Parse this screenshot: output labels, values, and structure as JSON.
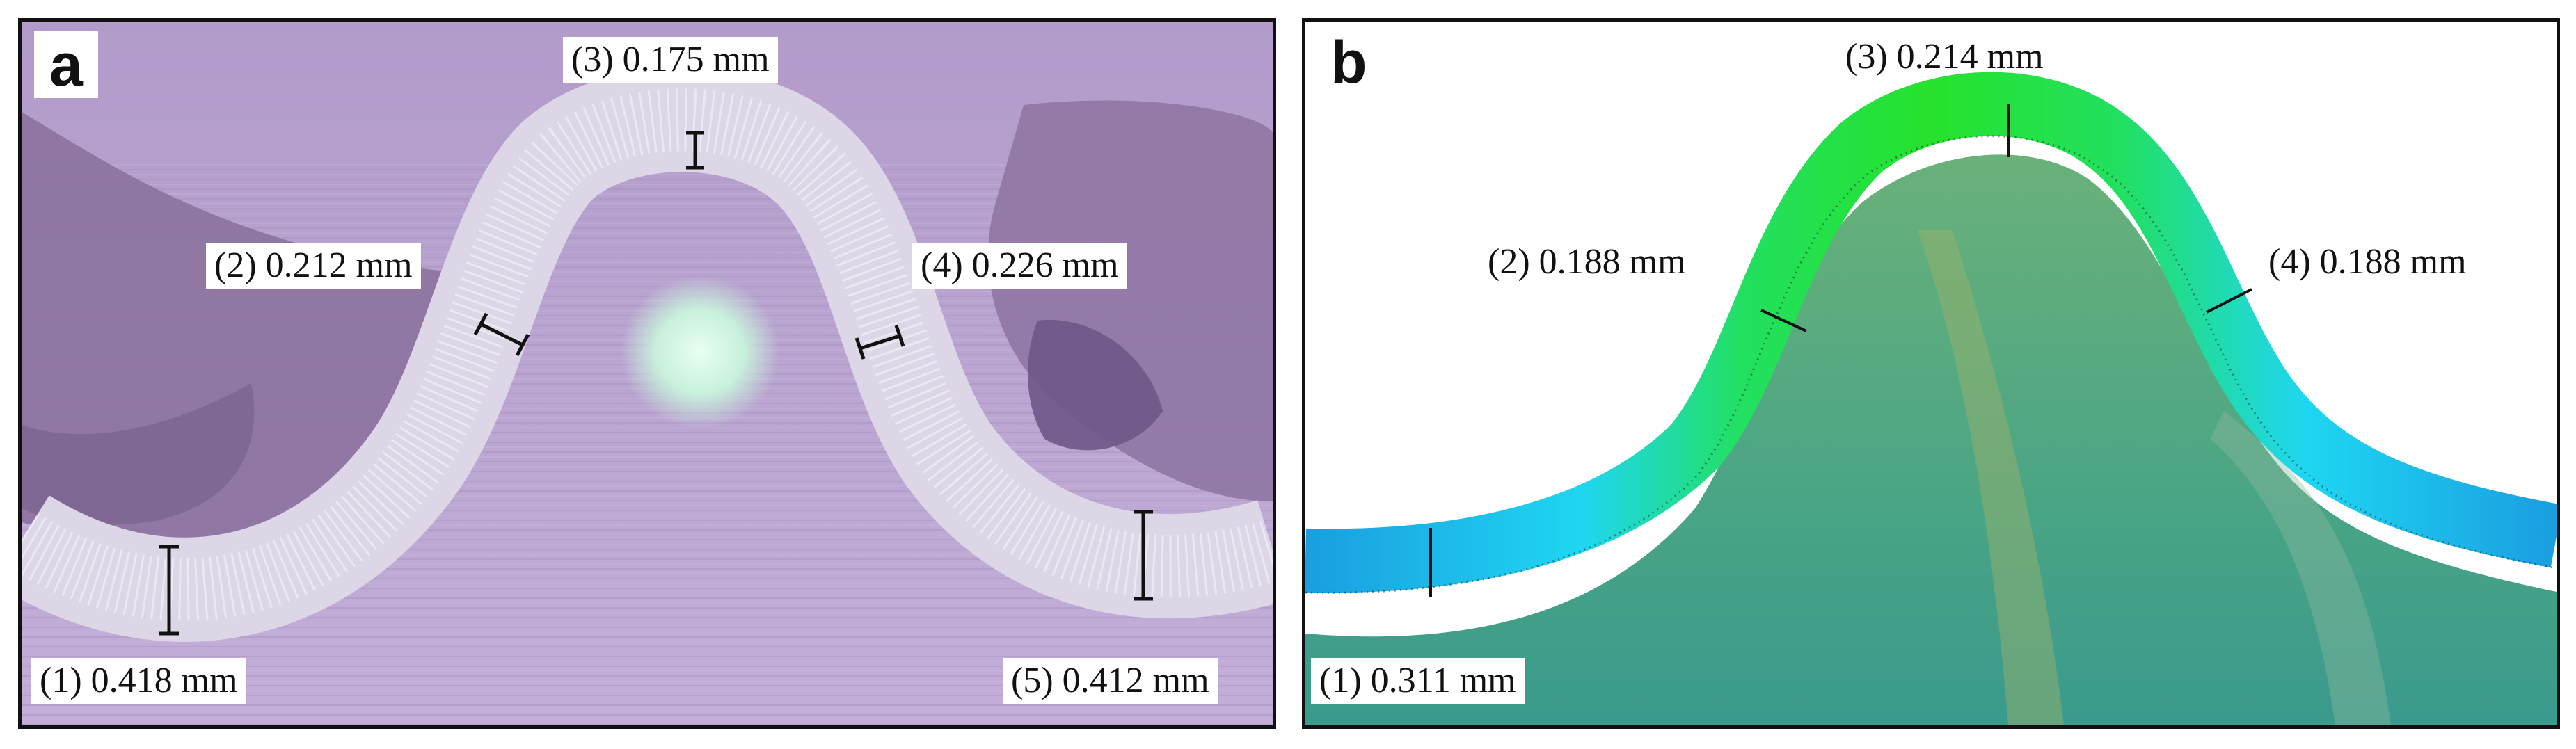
{
  "panel_a": {
    "letter": "a",
    "measurements": [
      {
        "index": "(1)",
        "value": "0.418 mm",
        "text": "(1) 0.418 mm"
      },
      {
        "index": "(2)",
        "value": "0.212 mm",
        "text": "(2) 0.212 mm"
      },
      {
        "index": "(3)",
        "value": "0.175 mm",
        "text": "(3) 0.175 mm"
      },
      {
        "index": "(4)",
        "value": "0.226 mm",
        "text": "(4) 0.226 mm"
      },
      {
        "index": "(5)",
        "value": "0.412 mm",
        "text": "(5) 0.412 mm"
      }
    ]
  },
  "panel_b": {
    "letter": "b",
    "measurements": [
      {
        "index": "(1)",
        "value": "0.311 mm",
        "text": "(1) 0.311 mm"
      },
      {
        "index": "(2)",
        "value": "0.188 mm",
        "text": "(2) 0.188 mm"
      },
      {
        "index": "(3)",
        "value": "0.214 mm",
        "text": "(3) 0.214 mm"
      },
      {
        "index": "(4)",
        "value": "0.188 mm",
        "text": "(4) 0.188 mm"
      }
    ]
  },
  "colors": {
    "micrograph_background": "#b49ccc",
    "metal_band": "#dcd6e6",
    "simulation_body": "#4fa888",
    "simulation_band_top": "#22e02a",
    "simulation_band_side": "#1fd8f0",
    "simulation_band_base": "#1aa8e8"
  }
}
